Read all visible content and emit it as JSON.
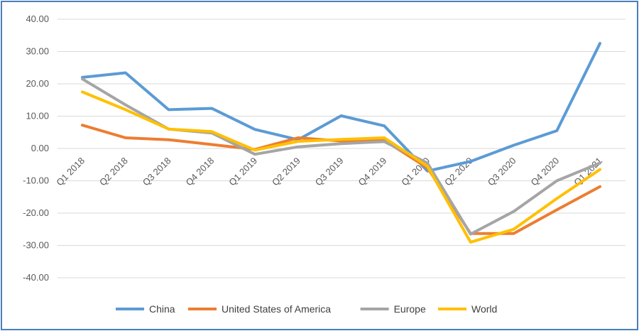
{
  "chart_data": {
    "type": "line",
    "title": "",
    "xlabel": "",
    "ylabel": "",
    "categories": [
      "Q1 2018",
      "Q2 2018",
      "Q3 2018",
      "Q4 2018",
      "Q1 2019",
      "Q2 2019",
      "Q3 2019",
      "Q4 2019",
      "Q1 2020",
      "Q2 2020",
      "Q3 2020",
      "Q4 2020",
      "Q1 2021"
    ],
    "ylim": [
      -40,
      40
    ],
    "yticks": [
      "40.00",
      "30.00",
      "20.00",
      "10.00",
      "0.00",
      "-10.00",
      "-20.00",
      "-30.00",
      "-40.00"
    ],
    "ytick_values": [
      40,
      30,
      20,
      10,
      0,
      -10,
      -20,
      -30,
      -40
    ],
    "grid": true,
    "legend_position": "bottom",
    "series": [
      {
        "name": "China",
        "color": "#5b9bd5",
        "values": [
          22.0,
          23.4,
          12.0,
          12.4,
          5.9,
          2.7,
          10.1,
          7.0,
          -7.0,
          -4.0,
          1.0,
          5.5,
          32.5
        ]
      },
      {
        "name": "United States of America",
        "color": "#ed7d31",
        "values": [
          7.2,
          3.3,
          2.7,
          1.2,
          -0.3,
          3.3,
          2.3,
          2.5,
          -6.0,
          -26.3,
          -26.3,
          -19.0,
          -11.8
        ]
      },
      {
        "name": "Europe",
        "color": "#a5a5a5",
        "values": [
          21.5,
          13.5,
          6.0,
          4.8,
          -1.8,
          0.5,
          1.5,
          2.1,
          -4.5,
          -26.5,
          -19.5,
          -10.0,
          -4.5
        ]
      },
      {
        "name": "World",
        "color": "#ffc000",
        "values": [
          17.5,
          12.0,
          6.0,
          5.2,
          -0.5,
          2.2,
          2.8,
          3.3,
          -5.5,
          -29.0,
          -25.0,
          -15.5,
          -6.5
        ]
      }
    ]
  }
}
